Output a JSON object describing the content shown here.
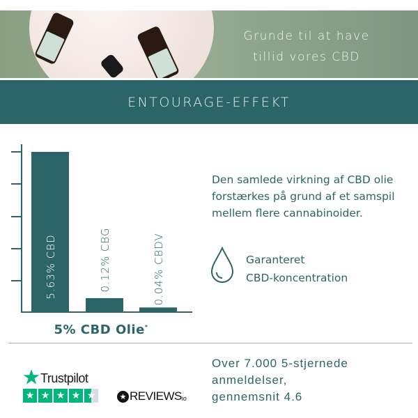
{
  "hero": {
    "title_line1": "Grunde til at have",
    "title_line2": "tillid vores CBD"
  },
  "section": {
    "title": "ENTOURAGE-EFFEKT"
  },
  "chart_data": {
    "type": "bar",
    "categories": [
      "CBD",
      "CBG",
      "CBDV"
    ],
    "values": [
      5.63,
      0.12,
      0.04
    ],
    "bar_labels": [
      "5.63% CBD",
      "0.12% CBG",
      "0.04% CBDV"
    ],
    "xlabel": "5% CBD Olie",
    "xlabel_mark": "*",
    "color": "#2c6568"
  },
  "description": "Den samlede virkning af CBD olie forstærkes på grund af et samspil mellem flere cannabinoider.",
  "guarantee": {
    "icon": "drop-icon",
    "line1": "Garanteret",
    "line2": "CBD-koncentration"
  },
  "trustpilot": {
    "name": "Trustpilot",
    "rating_stars": 4.5,
    "color": "#00b67a"
  },
  "reviewsio": {
    "name": "REVIEWS",
    "suffix": "io"
  },
  "reviews": {
    "line1": "Over 7.000 5-stjernede",
    "line2": "anmeldelser,",
    "line3": "gennemsnit 4.6"
  }
}
